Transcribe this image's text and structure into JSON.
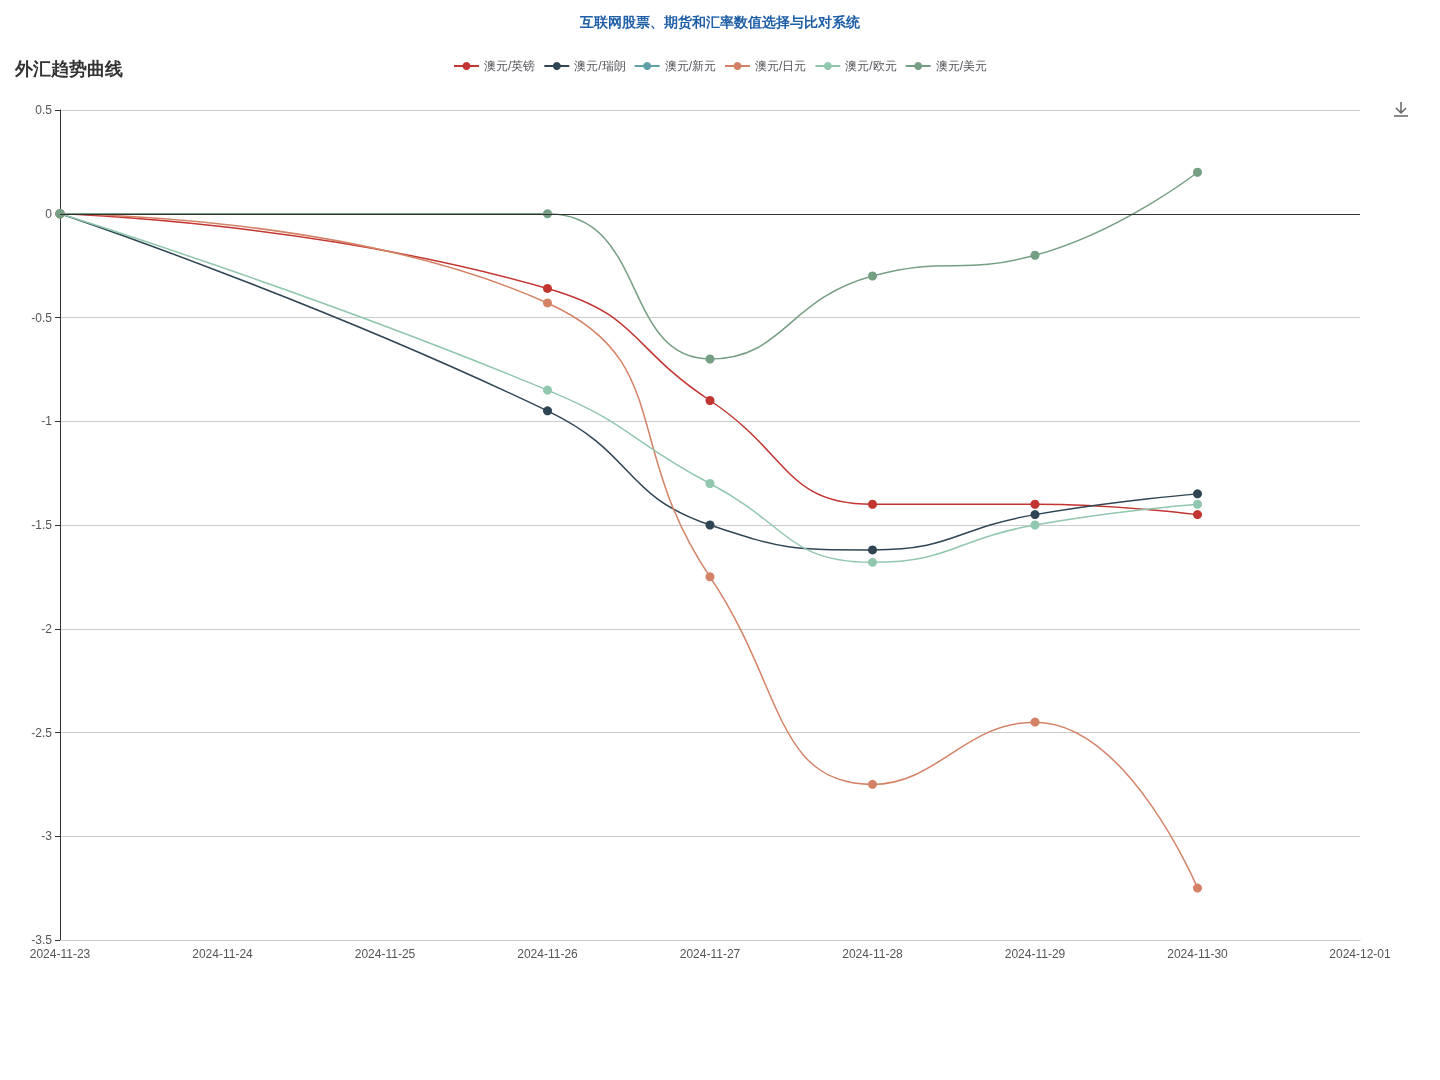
{
  "chart_data": {
    "type": "line",
    "title": "外汇趋势曲线",
    "subtitle": "互联网股票、期货和汇率数值选择与比对系统",
    "categories": [
      "2024-11-23",
      "2024-11-24",
      "2024-11-25",
      "2024-11-26",
      "2024-11-27",
      "2024-11-28",
      "2024-11-29",
      "2024-11-30",
      "2024-12-01"
    ],
    "series": [
      {
        "name": "澳元/英镑",
        "color": "#c23531",
        "values": [
          0,
          null,
          null,
          -0.36,
          -0.9,
          -1.4,
          -1.4,
          -1.45,
          null
        ]
      },
      {
        "name": "澳元/瑞朗",
        "color": "#2f4554",
        "values": [
          0,
          null,
          null,
          -0.95,
          -1.5,
          -1.62,
          -1.45,
          -1.35,
          null
        ]
      },
      {
        "name": "澳元/新元",
        "color": "#61a0a8",
        "values": [
          null,
          null,
          null,
          null,
          null,
          null,
          null,
          null,
          null
        ]
      },
      {
        "name": "澳元/日元",
        "color": "#d48265",
        "values": [
          0,
          null,
          null,
          -0.43,
          -1.75,
          -2.75,
          -2.45,
          -3.25,
          null
        ]
      },
      {
        "name": "澳元/欧元",
        "color": "#91c7ae",
        "values": [
          0,
          null,
          null,
          -0.85,
          -1.3,
          -1.68,
          -1.5,
          -1.4,
          null
        ]
      },
      {
        "name": "澳元/美元",
        "color": "#749f83",
        "values": [
          0,
          null,
          null,
          0,
          -0.7,
          -0.3,
          -0.2,
          0.2,
          null
        ]
      }
    ],
    "ylim": [
      -3.5,
      0.5
    ],
    "yticks": [
      -3.5,
      -3,
      -2.5,
      -2,
      -1.5,
      -1,
      -0.5,
      0,
      0.5
    ],
    "ref_lines": [
      {
        "axis": "y",
        "value": 0,
        "color": "#333333"
      }
    ],
    "grid": "y",
    "legend": "top",
    "marker": "circle"
  }
}
